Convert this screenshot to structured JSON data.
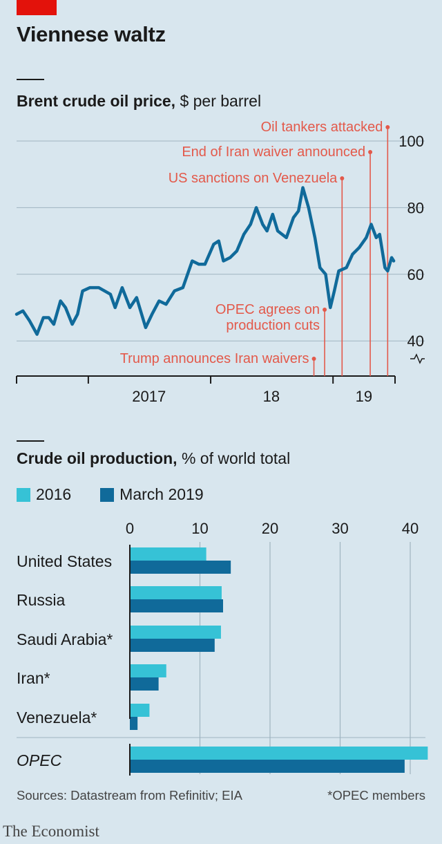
{
  "title": "Viennese waltz",
  "chart_data": [
    {
      "type": "line",
      "title": "Brent crude oil price,",
      "units": "$ per barrel",
      "ylim": [
        35,
        103
      ],
      "yticks": [
        "100",
        "80",
        "60",
        "40"
      ],
      "xticks": [
        "2017",
        "18",
        "19"
      ],
      "grid": true,
      "series": [
        {
          "color": "#106a9a",
          "points": [
            [
              "2016-06-01",
              48
            ],
            [
              "2016-06-20",
              49
            ],
            [
              "2016-07-10",
              46
            ],
            [
              "2016-08-01",
              42
            ],
            [
              "2016-08-20",
              47
            ],
            [
              "2016-09-05",
              47
            ],
            [
              "2016-09-20",
              45
            ],
            [
              "2016-10-10",
              52
            ],
            [
              "2016-10-25",
              50
            ],
            [
              "2016-11-14",
              45
            ],
            [
              "2016-11-30",
              48
            ],
            [
              "2016-12-15",
              55
            ],
            [
              "2017-01-06",
              56
            ],
            [
              "2017-02-01",
              56
            ],
            [
              "2017-03-08",
              54
            ],
            [
              "2017-03-22",
              50
            ],
            [
              "2017-04-12",
              56
            ],
            [
              "2017-05-05",
              50
            ],
            [
              "2017-05-25",
              53
            ],
            [
              "2017-06-21",
              44
            ],
            [
              "2017-07-10",
              48
            ],
            [
              "2017-07-31",
              52
            ],
            [
              "2017-08-21",
              51
            ],
            [
              "2017-09-15",
              55
            ],
            [
              "2017-10-10",
              56
            ],
            [
              "2017-11-07",
              64
            ],
            [
              "2017-11-27",
              63
            ],
            [
              "2017-12-15",
              63
            ],
            [
              "2018-01-10",
              69
            ],
            [
              "2018-01-25",
              70
            ],
            [
              "2018-02-08",
              64
            ],
            [
              "2018-02-28",
              65
            ],
            [
              "2018-03-20",
              67
            ],
            [
              "2018-04-10",
              72
            ],
            [
              "2018-04-30",
              75
            ],
            [
              "2018-05-17",
              80
            ],
            [
              "2018-06-05",
              75
            ],
            [
              "2018-06-18",
              73
            ],
            [
              "2018-07-05",
              78
            ],
            [
              "2018-07-20",
              73
            ],
            [
              "2018-08-15",
              71
            ],
            [
              "2018-09-05",
              77
            ],
            [
              "2018-09-20",
              79
            ],
            [
              "2018-10-03",
              86
            ],
            [
              "2018-10-20",
              80
            ],
            [
              "2018-11-08",
              71
            ],
            [
              "2018-11-23",
              62
            ],
            [
              "2018-12-10",
              60
            ],
            [
              "2018-12-24",
              50
            ],
            [
              "2019-01-05",
              55
            ],
            [
              "2019-01-18",
              61
            ],
            [
              "2019-02-10",
              62
            ],
            [
              "2019-02-28",
              66
            ],
            [
              "2019-03-20",
              68
            ],
            [
              "2019-04-10",
              71
            ],
            [
              "2019-04-25",
              75
            ],
            [
              "2019-05-10",
              71
            ],
            [
              "2019-05-20",
              72
            ],
            [
              "2019-06-05",
              62
            ],
            [
              "2019-06-13",
              61
            ],
            [
              "2019-06-25",
              65
            ],
            [
              "2019-07-01",
              64
            ]
          ]
        }
      ],
      "annotations": [
        {
          "text": "Oil tankers attacked",
          "date": "2019-06-13"
        },
        {
          "text": "End of Iran waiver announced",
          "date": "2019-04-22"
        },
        {
          "text": "US sanctions on Venezuela",
          "date": "2019-01-28"
        },
        {
          "text": "OPEC agrees on production cuts",
          "lines": [
            "OPEC agrees on",
            "production cuts"
          ],
          "date": "2018-12-07"
        },
        {
          "text": "Trump announces Iran waivers",
          "date": "2018-11-05"
        }
      ],
      "annotation_color": "#e3594a"
    },
    {
      "type": "bar",
      "orientation": "horizontal",
      "title": "Crude oil production,",
      "units": "% of world total",
      "xlim": [
        0,
        42
      ],
      "xticks": [
        "0",
        "10",
        "20",
        "30",
        "40"
      ],
      "categories": [
        "United States",
        "Russia",
        "Saudi Arabia*",
        "Iran*",
        "Venezuela*",
        "OPEC"
      ],
      "series": [
        {
          "name": "2016",
          "color": "#36c2d6",
          "values": [
            10.9,
            13.1,
            13.0,
            5.2,
            2.8,
            42.5
          ]
        },
        {
          "name": "March 2019",
          "color": "#106a9a",
          "values": [
            14.4,
            13.3,
            12.1,
            4.1,
            1.1,
            39.2
          ]
        }
      ]
    }
  ],
  "footer": {
    "sources": "Sources: Datastream from Refinitiv; EIA",
    "note": "*OPEC members",
    "brand": "The Economist"
  }
}
